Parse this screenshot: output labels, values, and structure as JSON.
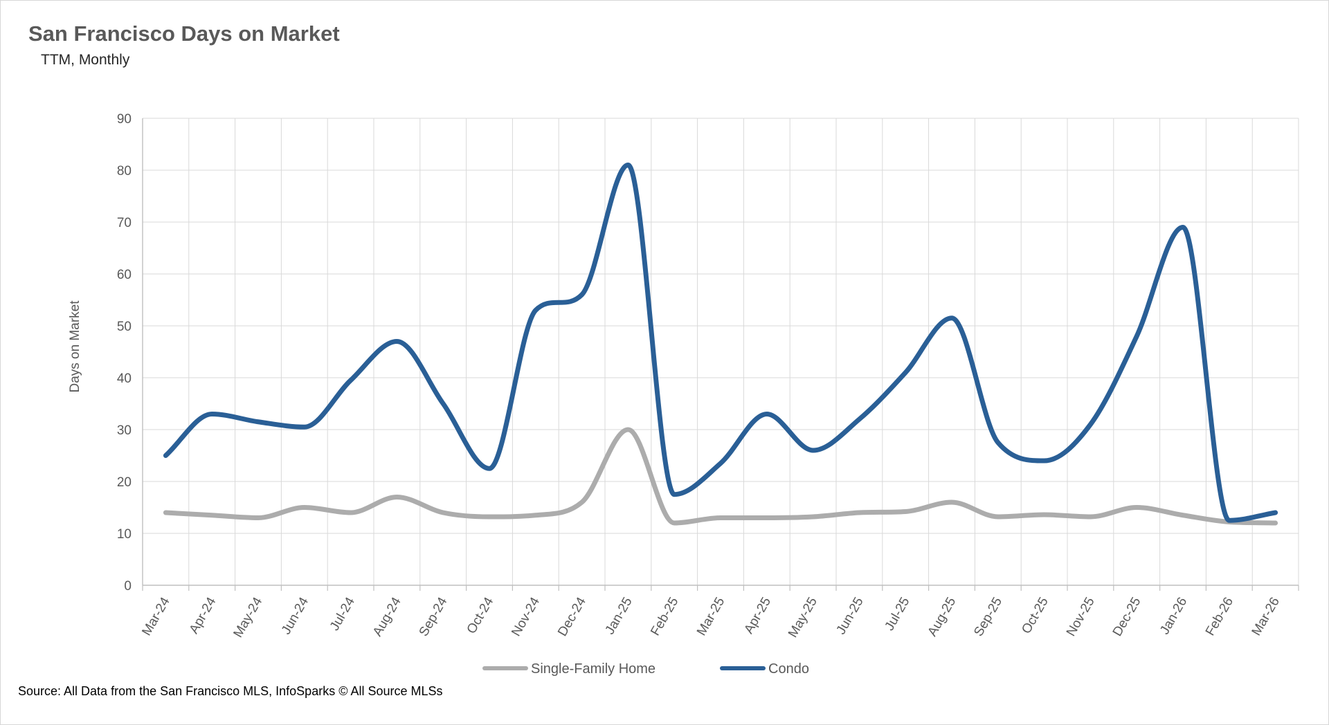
{
  "header": {
    "title": "San Francisco Days on Market",
    "subtitle": "TTM, Monthly"
  },
  "footer": {
    "source": "Source: All Data from the San Francisco MLS, InfoSparks © All Source MLSs"
  },
  "colors": {
    "condo_line": "#2A5F96",
    "sfh_line": "#ACACAC",
    "gridline": "#D9D9D9",
    "axis": "#BFBFBF",
    "tick_text": "#595959",
    "title_text": "#595959"
  },
  "chart_data": {
    "type": "line",
    "title": "San Francisco Days on Market",
    "subtitle": "TTM, Monthly",
    "xlabel": "",
    "ylabel": "Days on Market",
    "ylim": [
      0,
      90
    ],
    "ytick_step": 10,
    "ytick_labels": [
      "0",
      "10",
      "20",
      "30",
      "40",
      "50",
      "60",
      "70",
      "80",
      "90"
    ],
    "grid": true,
    "smooth": true,
    "legend_position": "bottom",
    "categories": [
      "Mar-24",
      "Apr-24",
      "May-24",
      "Jun-24",
      "Jul-24",
      "Aug-24",
      "Sep-24",
      "Oct-24",
      "Nov-24",
      "Dec-24",
      "Jan-25",
      "Feb-25",
      "Mar-25",
      "Apr-25",
      "May-25",
      "Jun-25",
      "Jul-25",
      "Aug-25",
      "Sep-25",
      "Oct-25",
      "Nov-25",
      "Dec-25",
      "Jan-26",
      "Feb-26",
      "Mar-26"
    ],
    "series": [
      {
        "name": "Single-Family Home",
        "color": "#ACACAC",
        "values": [
          14,
          13.5,
          13,
          15,
          14,
          17,
          14,
          13.2,
          13.5,
          16,
          30,
          12,
          13,
          13,
          13.2,
          14,
          14.2,
          16,
          13.2,
          13.6,
          13.2,
          15,
          13.5,
          12.2,
          12
        ]
      },
      {
        "name": "Condo",
        "color": "#2A5F96",
        "values": [
          25,
          33,
          31.5,
          30.5,
          39.5,
          47,
          35,
          22.5,
          53,
          56,
          81,
          17.5,
          23.5,
          33,
          26,
          32,
          41,
          51.5,
          27.5,
          24,
          31,
          48,
          69,
          12.5,
          14
        ]
      }
    ]
  }
}
